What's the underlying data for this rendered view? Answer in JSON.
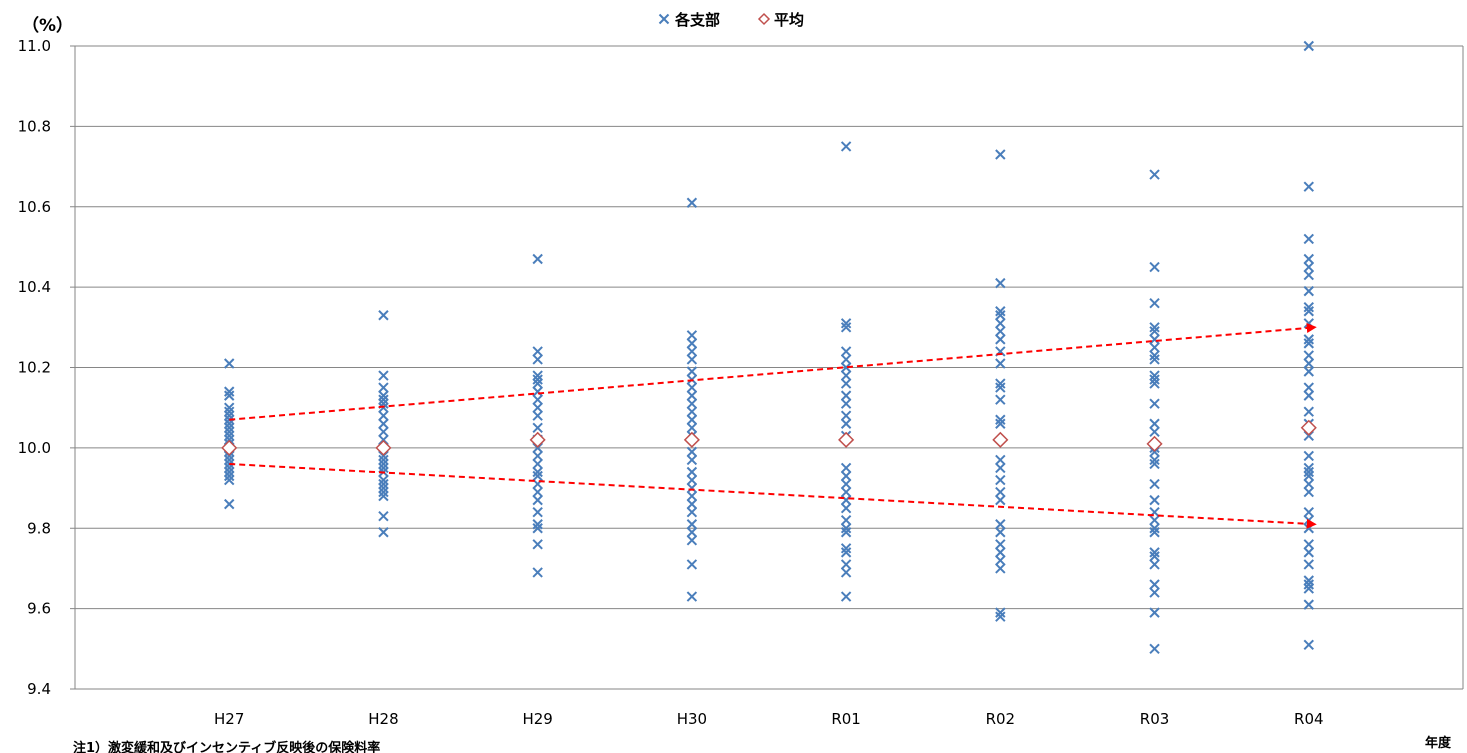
{
  "chart_data": {
    "type": "scatter",
    "ylabel": "（%）",
    "xlabel": "年度",
    "note": "注1）激変緩和及びインセンティブ反映後の保険料率",
    "categories": [
      "H27",
      "H28",
      "H29",
      "H30",
      "R01",
      "R02",
      "R03",
      "R04"
    ],
    "ylim": [
      9.4,
      11.0
    ],
    "yticks": [
      "9.4",
      "9.6",
      "9.8",
      "10.0",
      "10.2",
      "10.4",
      "10.6",
      "10.8",
      "11.0"
    ],
    "grid": true,
    "legend_position": "top-center",
    "series": [
      {
        "name": "各支部",
        "marker": "x",
        "color": "#4a7ebb",
        "values": [
          [
            9.86,
            9.92,
            9.93,
            9.94,
            9.95,
            9.96,
            9.97,
            9.98,
            9.99,
            10.0,
            10.0,
            10.01,
            10.02,
            10.03,
            10.04,
            10.05,
            10.06,
            10.07,
            10.08,
            10.09,
            10.1,
            10.13,
            10.14,
            10.21
          ],
          [
            9.79,
            9.83,
            9.88,
            9.89,
            9.9,
            9.91,
            9.92,
            9.94,
            9.95,
            9.96,
            9.97,
            9.98,
            10.0,
            10.02,
            10.04,
            10.06,
            10.08,
            10.1,
            10.11,
            10.12,
            10.13,
            10.15,
            10.18,
            10.33
          ],
          [
            9.69,
            9.76,
            9.8,
            9.81,
            9.84,
            9.87,
            9.89,
            9.91,
            9.93,
            9.94,
            9.96,
            9.98,
            10.0,
            10.02,
            10.05,
            10.08,
            10.1,
            10.12,
            10.14,
            10.16,
            10.17,
            10.18,
            10.22,
            10.24,
            10.47
          ],
          [
            9.63,
            9.71,
            9.77,
            9.79,
            9.81,
            9.84,
            9.86,
            9.88,
            9.9,
            9.92,
            9.94,
            9.97,
            9.99,
            10.03,
            10.05,
            10.07,
            10.09,
            10.11,
            10.13,
            10.15,
            10.17,
            10.19,
            10.22,
            10.24,
            10.26,
            10.28,
            10.61
          ],
          [
            9.63,
            9.69,
            9.71,
            9.74,
            9.75,
            9.79,
            9.8,
            9.82,
            9.85,
            9.87,
            9.89,
            9.91,
            9.93,
            9.95,
            10.03,
            10.06,
            10.08,
            10.11,
            10.13,
            10.16,
            10.18,
            10.2,
            10.22,
            10.24,
            10.3,
            10.31,
            10.75
          ],
          [
            9.58,
            9.59,
            9.7,
            9.72,
            9.74,
            9.76,
            9.79,
            9.81,
            9.87,
            9.89,
            9.92,
            9.95,
            9.97,
            10.06,
            10.07,
            10.12,
            10.15,
            10.16,
            10.21,
            10.24,
            10.27,
            10.29,
            10.31,
            10.33,
            10.34,
            10.41,
            10.73
          ],
          [
            9.5,
            9.59,
            9.64,
            9.66,
            9.71,
            9.73,
            9.74,
            9.79,
            9.8,
            9.82,
            9.84,
            9.87,
            9.91,
            9.96,
            9.97,
            9.99,
            10.0,
            10.04,
            10.06,
            10.11,
            10.16,
            10.17,
            10.18,
            10.22,
            10.23,
            10.25,
            10.27,
            10.29,
            10.3,
            10.36,
            10.45,
            10.68
          ],
          [
            9.51,
            9.61,
            9.65,
            9.66,
            9.67,
            9.71,
            9.74,
            9.76,
            9.8,
            9.82,
            9.84,
            9.89,
            9.91,
            9.93,
            9.94,
            9.95,
            9.98,
            10.03,
            10.06,
            10.09,
            10.13,
            10.15,
            10.19,
            10.21,
            10.23,
            10.26,
            10.27,
            10.31,
            10.34,
            10.35,
            10.39,
            10.43,
            10.45,
            10.47,
            10.52,
            10.65,
            11.0
          ]
        ]
      },
      {
        "name": "平均",
        "marker": "diamond",
        "color": "#c0504d",
        "values": [
          10.0,
          10.0,
          10.02,
          10.02,
          10.02,
          10.02,
          10.01,
          10.05
        ]
      }
    ],
    "trend_arrows": [
      {
        "from": [
          "H27",
          10.07
        ],
        "to": [
          "R04",
          10.3
        ],
        "color": "#ff0000"
      },
      {
        "from": [
          "H27",
          9.96
        ],
        "to": [
          "R04",
          9.81
        ],
        "color": "#ff0000"
      }
    ]
  }
}
